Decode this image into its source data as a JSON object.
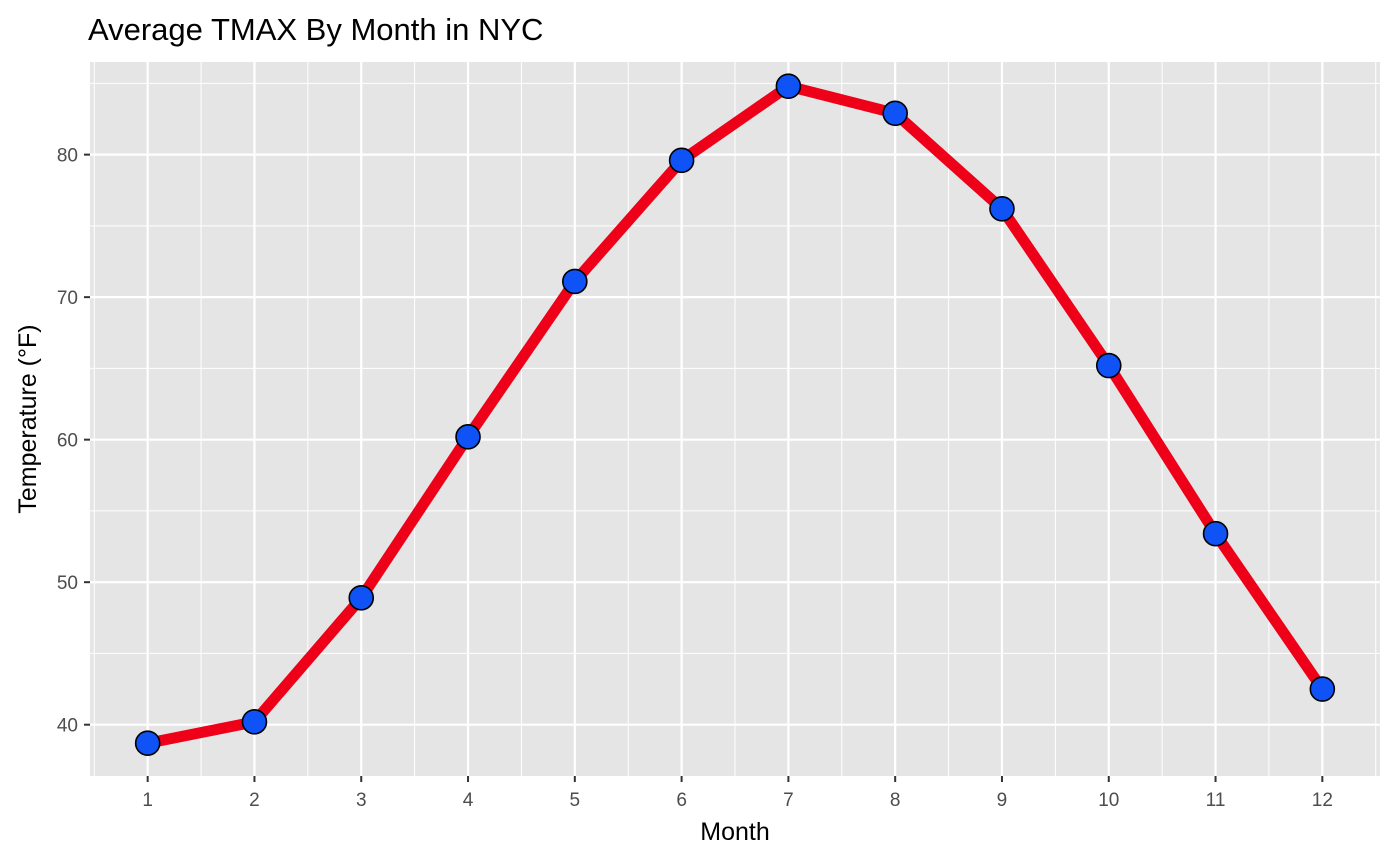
{
  "chart_data": {
    "type": "line",
    "title": "Average TMAX By Month in NYC",
    "xlabel": "Month",
    "ylabel": "Temperature (°F)",
    "x": [
      1,
      2,
      3,
      4,
      5,
      6,
      7,
      8,
      9,
      10,
      11,
      12
    ],
    "x_tick_labels": [
      "1",
      "2",
      "3",
      "4",
      "5",
      "6",
      "7",
      "8",
      "9",
      "10",
      "11",
      "12"
    ],
    "y_ticks": [
      40,
      50,
      60,
      70,
      80
    ],
    "y_tick_labels": [
      "40",
      "50",
      "60",
      "70",
      "80"
    ],
    "series": [
      {
        "values": [
          38.7,
          40.2,
          48.9,
          60.2,
          71.1,
          79.6,
          84.8,
          82.9,
          76.2,
          65.2,
          53.4,
          42.5
        ]
      }
    ],
    "xlim": [
      0.46,
      12.54
    ],
    "ylim": [
      36.4,
      86.5
    ],
    "grid": true,
    "legend": "none",
    "colors": {
      "line": "#ee0018",
      "point_fill": "#0f52f5",
      "point_stroke": "#000000",
      "panel": "#e5e5e5",
      "grid": "#ffffff"
    }
  }
}
